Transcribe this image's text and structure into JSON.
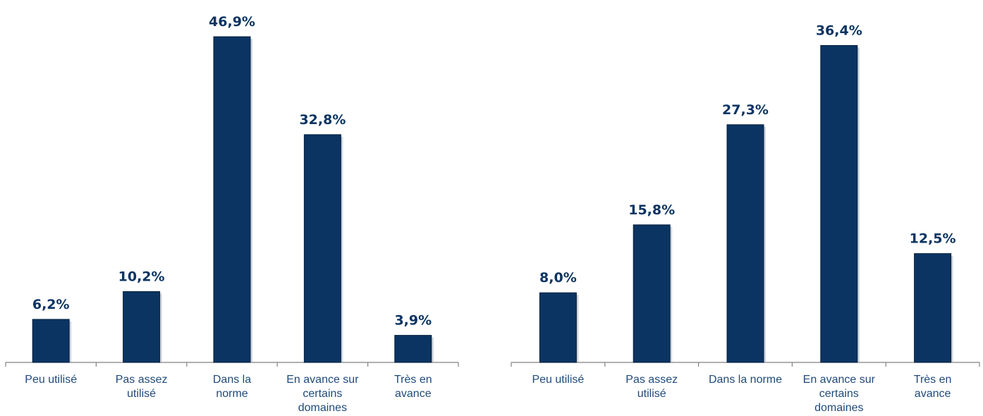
{
  "chart_data": [
    {
      "type": "bar",
      "categories": [
        [
          "Peu utilisé"
        ],
        [
          "Pas assez",
          "utilisé"
        ],
        [
          "Dans la",
          "norme"
        ],
        [
          "En avance sur",
          "certains",
          "domaines"
        ],
        [
          "Très en",
          "avance"
        ]
      ],
      "values": [
        6.2,
        10.2,
        46.9,
        32.8,
        3.9
      ],
      "data_labels": [
        "6,2%",
        "10,2%",
        "46,9%",
        "32,8%",
        "3,9%"
      ],
      "title": "",
      "xlabel": "",
      "ylabel": "",
      "ylim": [
        0,
        50
      ],
      "grid": false,
      "legend": "none"
    },
    {
      "type": "bar",
      "categories": [
        [
          "Peu utilisé"
        ],
        [
          "Pas assez",
          "utilisé"
        ],
        [
          "Dans la norme"
        ],
        [
          "En avance sur",
          "certains",
          "domaines"
        ],
        [
          "Très en",
          "avance"
        ]
      ],
      "values": [
        8.0,
        15.8,
        27.3,
        36.4,
        12.5
      ],
      "data_labels": [
        "8,0%",
        "15,8%",
        "27,3%",
        "36,4%",
        "12,5%"
      ],
      "title": "",
      "xlabel": "",
      "ylabel": "",
      "ylim": [
        0,
        40
      ],
      "grid": false,
      "legend": "none"
    }
  ],
  "colors": {
    "bar": "#0c3462",
    "bar_edge": "#05203f",
    "label": "#0c3462",
    "category_text": "#1f4a7a",
    "axis": "#808080"
  }
}
